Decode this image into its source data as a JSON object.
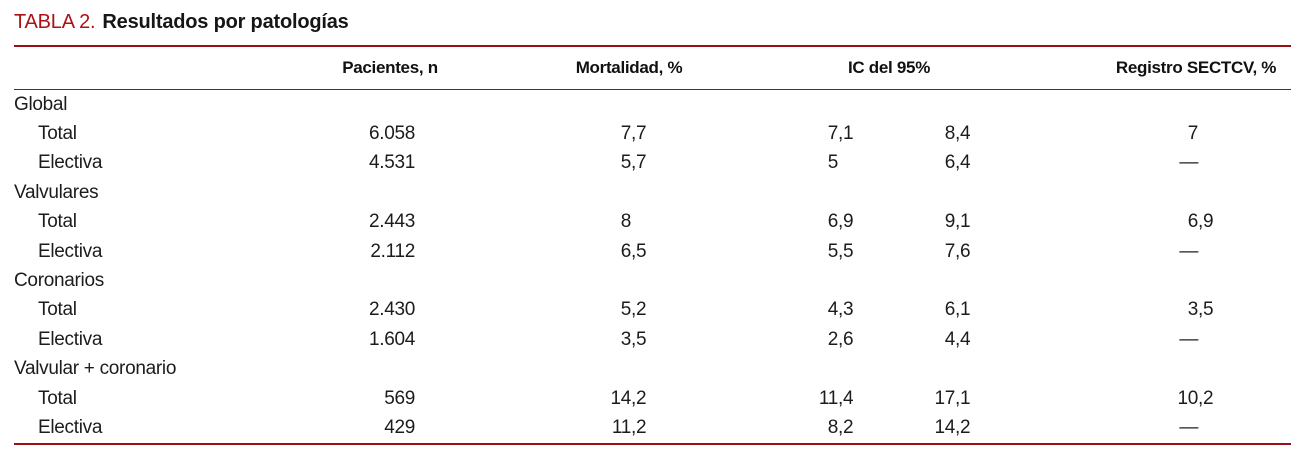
{
  "title": {
    "label": "TABLA 2.",
    "text": "Resultados por patologías"
  },
  "colors": {
    "accent_red": "#ad1116",
    "rule_red": "#990f13",
    "text": "#1c1c1c",
    "background": "#ffffff"
  },
  "columns": {
    "patients": "Pacientes, n",
    "mortality": "Mortalidad, %",
    "ci": "IC del 95%",
    "registry": "Registro SECTCV, %"
  },
  "rows": [
    {
      "type": "section",
      "label": "Global"
    },
    {
      "type": "data",
      "label": "Total",
      "patients": "6.058",
      "mortality": "7,7",
      "ci_low": "7,1",
      "ci_high": "8,4",
      "registry": "7"
    },
    {
      "type": "data",
      "label": "Electiva",
      "patients": "4.531",
      "mortality": "5,7",
      "ci_low": "5",
      "ci_high": "6,4",
      "registry": "—"
    },
    {
      "type": "section",
      "label": "Valvulares"
    },
    {
      "type": "data",
      "label": "Total",
      "patients": "2.443",
      "mortality": "8",
      "ci_low": "6,9",
      "ci_high": "9,1",
      "registry": "6,9"
    },
    {
      "type": "data",
      "label": "Electiva",
      "patients": "2.112",
      "mortality": "6,5",
      "ci_low": "5,5",
      "ci_high": "7,6",
      "registry": "—"
    },
    {
      "type": "section",
      "label": "Coronarios"
    },
    {
      "type": "data",
      "label": "Total",
      "patients": "2.430",
      "mortality": "5,2",
      "ci_low": "4,3",
      "ci_high": "6,1",
      "registry": "3,5"
    },
    {
      "type": "data",
      "label": "Electiva",
      "patients": "1.604",
      "mortality": "3,5",
      "ci_low": "2,6",
      "ci_high": "4,4",
      "registry": "—"
    },
    {
      "type": "section",
      "label": "Valvular + coronario"
    },
    {
      "type": "data",
      "label": "Total",
      "patients": "569",
      "mortality": "14,2",
      "ci_low": "11,4",
      "ci_high": "17,1",
      "registry": "10,2"
    },
    {
      "type": "data",
      "label": "Electiva",
      "patients": "429",
      "mortality": "11,2",
      "ci_low": "8,2",
      "ci_high": "14,2",
      "registry": "—"
    }
  ]
}
